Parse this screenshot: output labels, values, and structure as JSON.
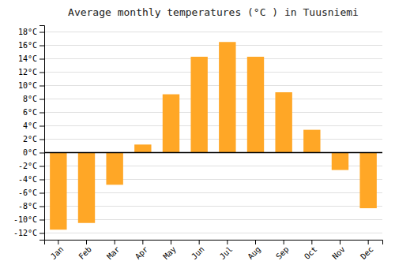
{
  "chart_data": {
    "type": "bar",
    "title": "Average monthly temperatures (°C ) in Tuusniemi",
    "categories": [
      "Jan",
      "Feb",
      "Mar",
      "Apr",
      "May",
      "Jun",
      "Jul",
      "Aug",
      "Sep",
      "Oct",
      "Nov",
      "Dec"
    ],
    "values": [
      -11.5,
      -10.5,
      -4.8,
      1.2,
      8.7,
      14.3,
      16.5,
      14.3,
      9.0,
      3.4,
      -2.6,
      -8.3
    ],
    "color": "#FFA726",
    "ylim": [
      -13,
      19
    ],
    "yticks": [
      {
        "value": -12,
        "label": "-12°C"
      },
      {
        "value": -10,
        "label": "-10°C"
      },
      {
        "value": -8,
        "label": "-8°C"
      },
      {
        "value": -6,
        "label": "-6°C"
      },
      {
        "value": -4,
        "label": "-4°C"
      },
      {
        "value": -2,
        "label": "-2°C"
      },
      {
        "value": 0,
        "label": "0°C"
      },
      {
        "value": 2,
        "label": "2°C"
      },
      {
        "value": 4,
        "label": "4°C"
      },
      {
        "value": 6,
        "label": "6°C"
      },
      {
        "value": 8,
        "label": "8°C"
      },
      {
        "value": 10,
        "label": "10°C"
      },
      {
        "value": 12,
        "label": "12°C"
      },
      {
        "value": 14,
        "label": "14°C"
      },
      {
        "value": 16,
        "label": "16°C"
      },
      {
        "value": 18,
        "label": "18°C"
      }
    ],
    "grid": true
  }
}
